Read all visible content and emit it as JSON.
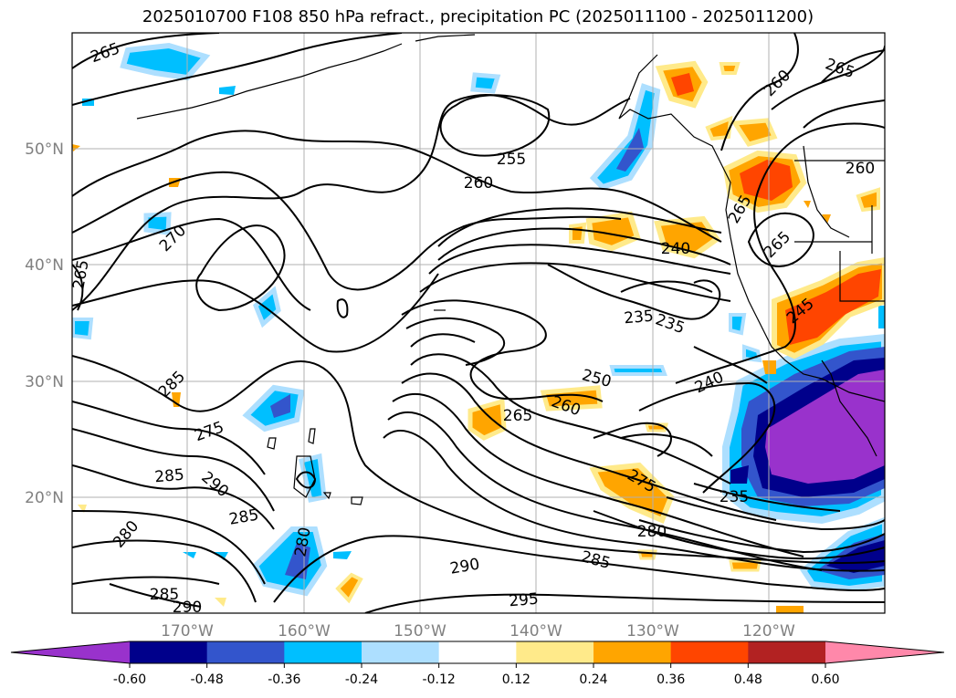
{
  "title": "2025010700 F108 850 hPa refract., precipitation PC (2025011100 - 2025011200)",
  "map": {
    "lat_labels": [
      "50°N",
      "40°N",
      "30°N",
      "20°N"
    ],
    "lon_labels": [
      "170°W",
      "160°W",
      "150°W",
      "140°W",
      "130°W",
      "120°W"
    ]
  },
  "contour_labels": [
    "265",
    "260",
    "265",
    "255",
    "260",
    "270",
    "265",
    "240",
    "235",
    "235",
    "250",
    "240",
    "285",
    "275",
    "265",
    "260",
    "285",
    "290",
    "275",
    "235",
    "285",
    "280",
    "280",
    "280",
    "285",
    "290",
    "285",
    "290",
    "295",
    "260",
    "265",
    "265",
    "245"
  ],
  "colorbar": {
    "colors": [
      "#9932CC",
      "#00008B",
      "#3355CC",
      "#00BFFF",
      "#ADDFFF",
      "#FFFFFF",
      "#FFEA8A",
      "#FFA500",
      "#FF4500",
      "#B22222",
      "#FF88AA"
    ],
    "tick_labels": [
      "-0.60",
      "-0.48",
      "-0.36",
      "-0.24",
      "-0.12",
      "0.12",
      "0.24",
      "0.36",
      "0.48",
      "0.60"
    ]
  }
}
